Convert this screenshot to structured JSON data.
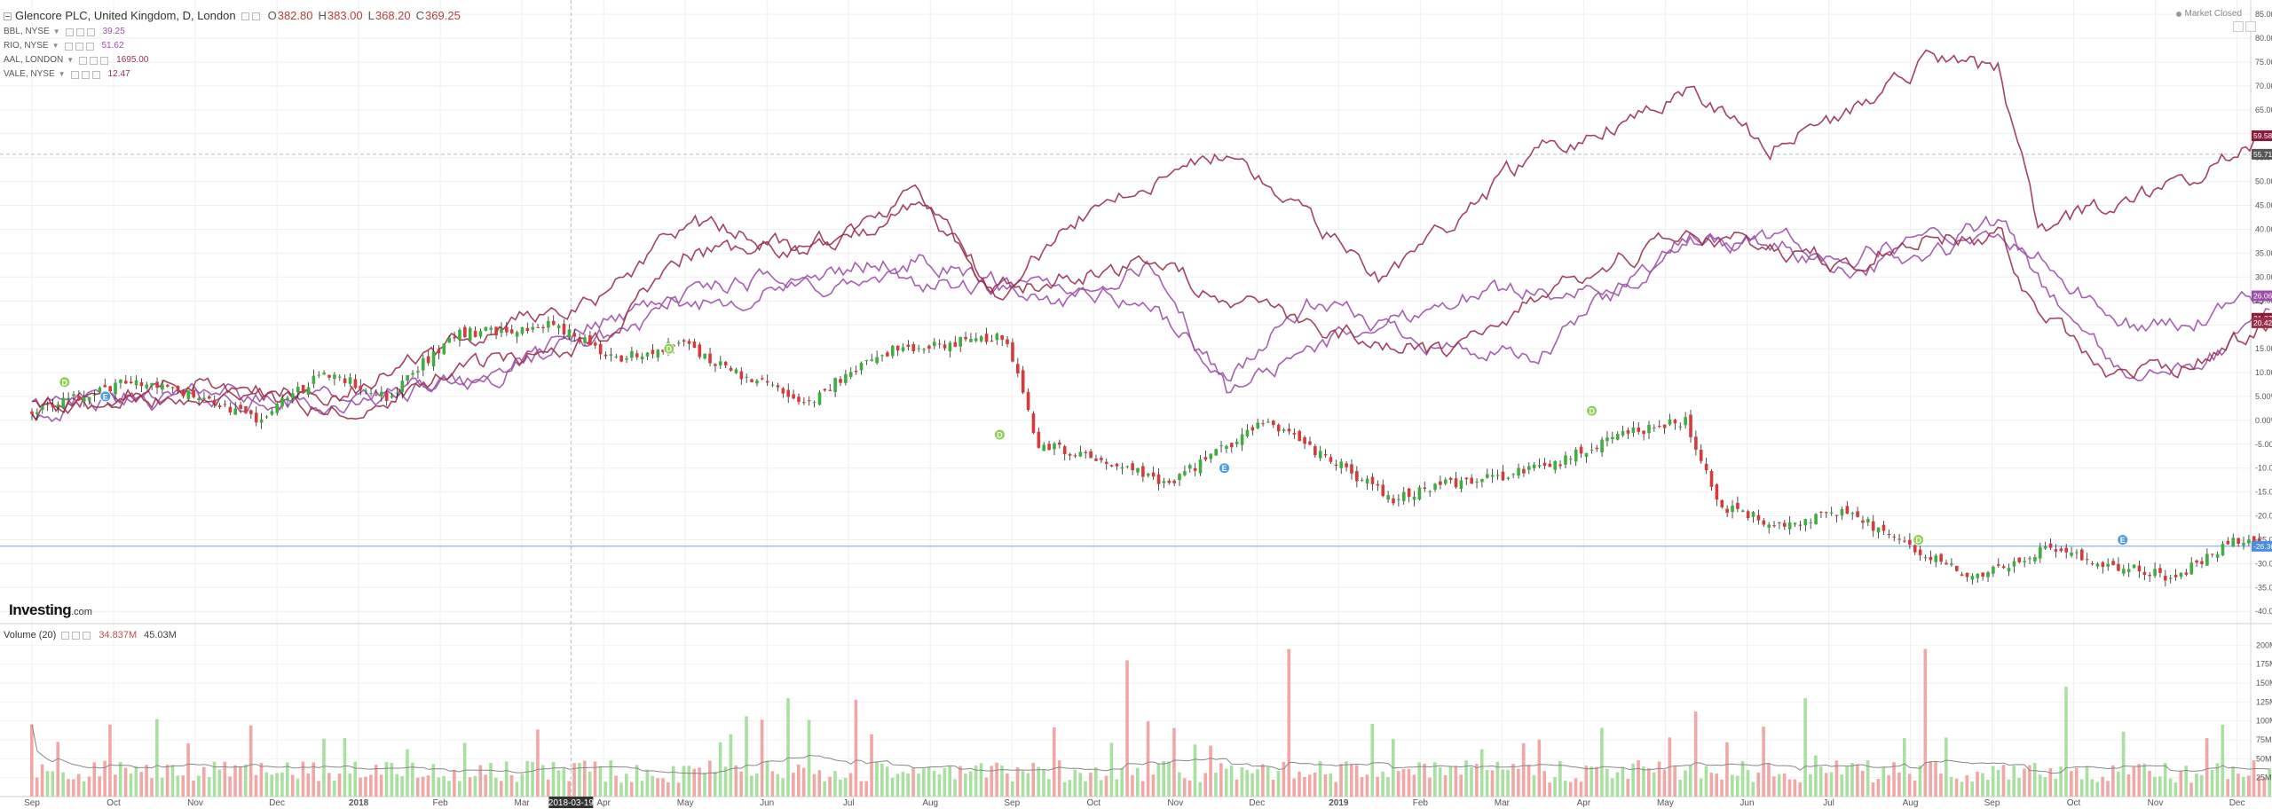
{
  "header": {
    "title": "Glencore PLC, United Kingdom, D, London",
    "ohlc": [
      {
        "label": "O",
        "value": "382.80"
      },
      {
        "label": "H",
        "value": "383.00"
      },
      {
        "label": "L",
        "value": "368.20"
      },
      {
        "label": "C",
        "value": "369.25"
      }
    ]
  },
  "comparisons": [
    {
      "symbol": "BBL, NYSE",
      "value": "39.25",
      "color": "#9b4fa8"
    },
    {
      "symbol": "RIO, NYSE",
      "value": "51.62",
      "color": "#9b4fa8"
    },
    {
      "symbol": "AAL, LONDON",
      "value": "1695.00",
      "color": "#9b2f4a"
    },
    {
      "symbol": "VALE, NYSE",
      "value": "12.47",
      "color": "#9b2f4a"
    }
  ],
  "volume_legend": {
    "label": "Volume (20)",
    "value1": "34.837M",
    "value2": "45.03M"
  },
  "status": "Market Closed",
  "logo": {
    "main": "Investing",
    "suffix": ".com"
  },
  "crosshair_date": "2018-03-19",
  "colors": {
    "up": "#3fae3f",
    "down": "#d63a3a",
    "vol_up": "#a8e0a0",
    "vol_down": "#f2a7a7",
    "series_purple": "#9b4fa8",
    "series_maroon": "#9b2f4a",
    "current": "#4a8de0"
  },
  "chart_data": {
    "type": "line",
    "price_axis": {
      "ticks": [
        "85.00%",
        "80.00%",
        "75.00%",
        "70.00%",
        "65.00%",
        "60.00%",
        "55.00%",
        "50.00%",
        "45.00%",
        "40.00%",
        "35.00%",
        "30.00%",
        "25.00%",
        "20.00%",
        "15.00%",
        "10.00%",
        "5.00%",
        "0.00%",
        "-5.00%",
        "-10.00%",
        "-15.00%",
        "-20.00%",
        "-25.00%",
        "-30.00%",
        "-35.00%",
        "-40.00%"
      ],
      "range": [
        -42,
        88
      ]
    },
    "volume_axis": {
      "ticks": [
        "200M",
        "175M",
        "150M",
        "125M",
        "100M",
        "75M",
        "50M",
        "25M"
      ],
      "range": [
        0,
        225
      ]
    },
    "time_axis": [
      "Sep",
      "Oct",
      "Nov",
      "Dec",
      "2018",
      "Feb",
      "Mar",
      "Apr",
      "May",
      "Jun",
      "Jul",
      "Aug",
      "Sep",
      "Oct",
      "Nov",
      "Dec",
      "2019",
      "Feb",
      "Mar",
      "Apr",
      "May",
      "Jun",
      "Jul",
      "Aug",
      "Sep",
      "Oct",
      "Nov",
      "Dec"
    ],
    "price_labels": [
      {
        "text": "59.58%",
        "value": 59.58,
        "color": "#8b1a3a"
      },
      {
        "text": "55.71",
        "value": 55.71,
        "color": "#555555"
      },
      {
        "text": "26.06%",
        "value": 26.06,
        "color": "#9b4fa8"
      },
      {
        "text": "21.37%",
        "value": 21.37,
        "color": "#8b1a3a"
      },
      {
        "text": "20.42%",
        "value": 20.42,
        "color": "#9b2f4a"
      },
      {
        "text": "-26.36%",
        "value": -26.36,
        "color": "#4a8de0"
      }
    ],
    "series": [
      {
        "name": "BBL, NYSE",
        "color": "#9b4fa8",
        "anchors": [
          [
            0,
            2
          ],
          [
            4,
            5
          ],
          [
            8,
            3
          ],
          [
            12,
            10
          ],
          [
            15,
            18
          ],
          [
            17,
            24
          ],
          [
            20,
            28
          ],
          [
            23,
            29
          ],
          [
            25,
            27
          ],
          [
            27,
            28
          ],
          [
            29,
            24
          ],
          [
            31,
            9
          ],
          [
            33,
            24
          ],
          [
            35,
            20
          ],
          [
            37,
            15
          ],
          [
            39,
            12
          ],
          [
            41,
            28
          ],
          [
            43,
            38
          ],
          [
            45,
            37
          ],
          [
            47,
            32
          ],
          [
            49,
            34
          ],
          [
            51,
            38
          ],
          [
            52,
            34
          ],
          [
            54,
            20
          ],
          [
            56,
            20
          ],
          [
            58,
            26
          ]
        ]
      },
      {
        "name": "RIO, NYSE",
        "color": "#9b4fa8",
        "anchors": [
          [
            0,
            3
          ],
          [
            4,
            6
          ],
          [
            8,
            4
          ],
          [
            12,
            9
          ],
          [
            15,
            22
          ],
          [
            17,
            27
          ],
          [
            20,
            30
          ],
          [
            23,
            34
          ],
          [
            25,
            29
          ],
          [
            27,
            24
          ],
          [
            29,
            33
          ],
          [
            31,
            5
          ],
          [
            33,
            15
          ],
          [
            35,
            20
          ],
          [
            37,
            26
          ],
          [
            39,
            28
          ],
          [
            41,
            26
          ],
          [
            43,
            36
          ],
          [
            45,
            38
          ],
          [
            47,
            34
          ],
          [
            49,
            38
          ],
          [
            51,
            41
          ],
          [
            52,
            30
          ],
          [
            54,
            10
          ],
          [
            56,
            10
          ],
          [
            58,
            22
          ]
        ]
      },
      {
        "name": "AAL, LONDON",
        "color": "#9b2f4a",
        "anchors": [
          [
            0,
            1
          ],
          [
            4,
            8
          ],
          [
            8,
            5
          ],
          [
            12,
            20
          ],
          [
            15,
            26
          ],
          [
            17,
            42
          ],
          [
            20,
            35
          ],
          [
            23,
            47
          ],
          [
            25,
            26
          ],
          [
            27,
            42
          ],
          [
            29,
            50
          ],
          [
            31,
            56
          ],
          [
            33,
            42
          ],
          [
            35,
            30
          ],
          [
            37,
            43
          ],
          [
            39,
            56
          ],
          [
            41,
            62
          ],
          [
            43,
            71
          ],
          [
            45,
            57
          ],
          [
            47,
            64
          ],
          [
            49,
            75
          ],
          [
            51,
            73
          ],
          [
            52,
            40
          ],
          [
            54,
            45
          ],
          [
            56,
            50
          ],
          [
            58,
            60
          ]
        ]
      },
      {
        "name": "VALE, NYSE",
        "color": "#9b2f4a",
        "anchors": [
          [
            0,
            4
          ],
          [
            4,
            5
          ],
          [
            8,
            3
          ],
          [
            12,
            12
          ],
          [
            15,
            18
          ],
          [
            17,
            35
          ],
          [
            20,
            36
          ],
          [
            23,
            44
          ],
          [
            25,
            28
          ],
          [
            27,
            30
          ],
          [
            29,
            33
          ],
          [
            31,
            25
          ],
          [
            33,
            20
          ],
          [
            35,
            16
          ],
          [
            37,
            14
          ],
          [
            39,
            25
          ],
          [
            41,
            34
          ],
          [
            43,
            38
          ],
          [
            45,
            37
          ],
          [
            47,
            33
          ],
          [
            49,
            39
          ],
          [
            51,
            38
          ],
          [
            52,
            22
          ],
          [
            54,
            8
          ],
          [
            56,
            12
          ],
          [
            58,
            20
          ]
        ]
      }
    ],
    "main_series": {
      "name": "Glencore PLC",
      "anchors": [
        [
          0,
          2
        ],
        [
          3,
          8
        ],
        [
          5,
          5
        ],
        [
          7,
          0
        ],
        [
          9,
          10
        ],
        [
          11,
          5
        ],
        [
          13,
          18
        ],
        [
          16,
          20
        ],
        [
          18,
          13
        ],
        [
          20,
          16
        ],
        [
          22,
          9
        ],
        [
          24,
          4
        ],
        [
          26,
          14
        ],
        [
          28,
          16
        ],
        [
          30,
          18
        ],
        [
          31,
          -5
        ],
        [
          33,
          -8
        ],
        [
          35,
          -13
        ],
        [
          37,
          -5
        ],
        [
          38,
          0
        ],
        [
          40,
          -8
        ],
        [
          42,
          -17
        ],
        [
          43,
          -14
        ],
        [
          45,
          -12
        ],
        [
          47,
          -9
        ],
        [
          49,
          -3
        ],
        [
          51,
          0
        ],
        [
          52,
          -18
        ],
        [
          54,
          -22
        ],
        [
          56,
          -19
        ],
        [
          58,
          -27
        ],
        [
          60,
          -33
        ],
        [
          62,
          -27
        ],
        [
          64,
          -30
        ],
        [
          66,
          -33
        ],
        [
          68,
          -25
        ],
        [
          69,
          -27
        ]
      ]
    }
  }
}
